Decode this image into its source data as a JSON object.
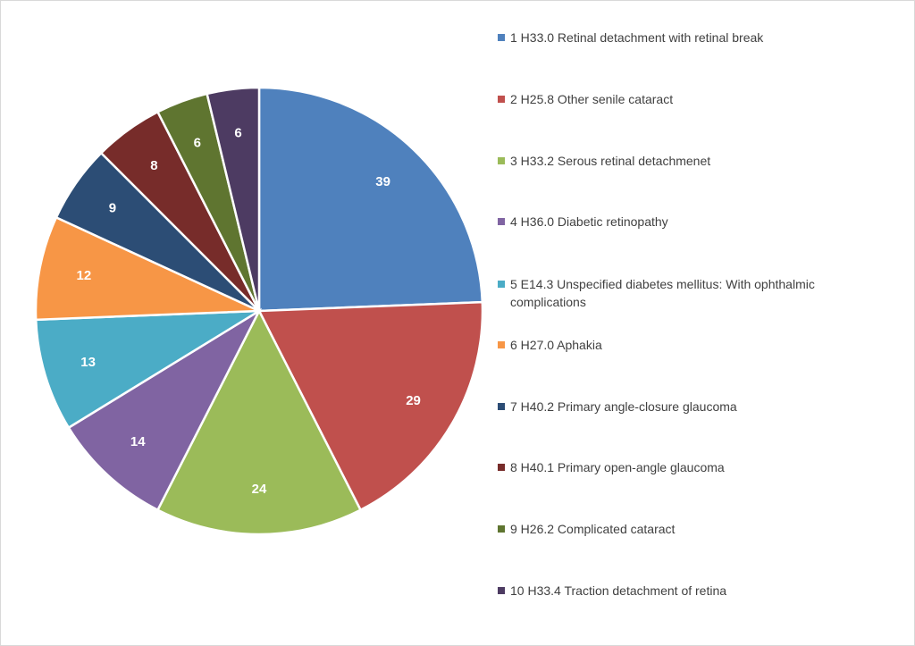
{
  "chart_data": {
    "type": "pie",
    "title": "",
    "slices": [
      {
        "label": "1 H33.0 Retinal detachment with retinal break",
        "value": 39,
        "color": "#4F81BD"
      },
      {
        "label": "2 H25.8 Other senile cataract",
        "value": 29,
        "color": "#C0504D"
      },
      {
        "label": "3 H33.2 Serous retinal detachmenet",
        "value": 24,
        "color": "#9BBB59"
      },
      {
        "label": "4 H36.0 Diabetic retinopathy",
        "value": 14,
        "color": "#8064A2"
      },
      {
        "label": "5 E14.3 Unspecified diabetes mellitus: With ophthalmic complications",
        "value": 13,
        "color": "#4BACC6"
      },
      {
        "label": "6 H27.0 Aphakia",
        "value": 12,
        "color": "#F79646"
      },
      {
        "label": "7 H40.2 Primary angle-closure glaucoma",
        "value": 9,
        "color": "#2C4D75"
      },
      {
        "label": "8 H40.1 Primary open-angle glaucoma",
        "value": 8,
        "color": "#772C2A"
      },
      {
        "label": "9 H26.2 Complicated cataract",
        "value": 6,
        "color": "#5F7530"
      },
      {
        "label": "10 H33.4 Traction detachment of retina",
        "value": 6,
        "color": "#4D3B62"
      }
    ],
    "start_angle": "12 o'clock",
    "direction": "clockwise",
    "data_labels": "inside",
    "legend_position": "right"
  }
}
